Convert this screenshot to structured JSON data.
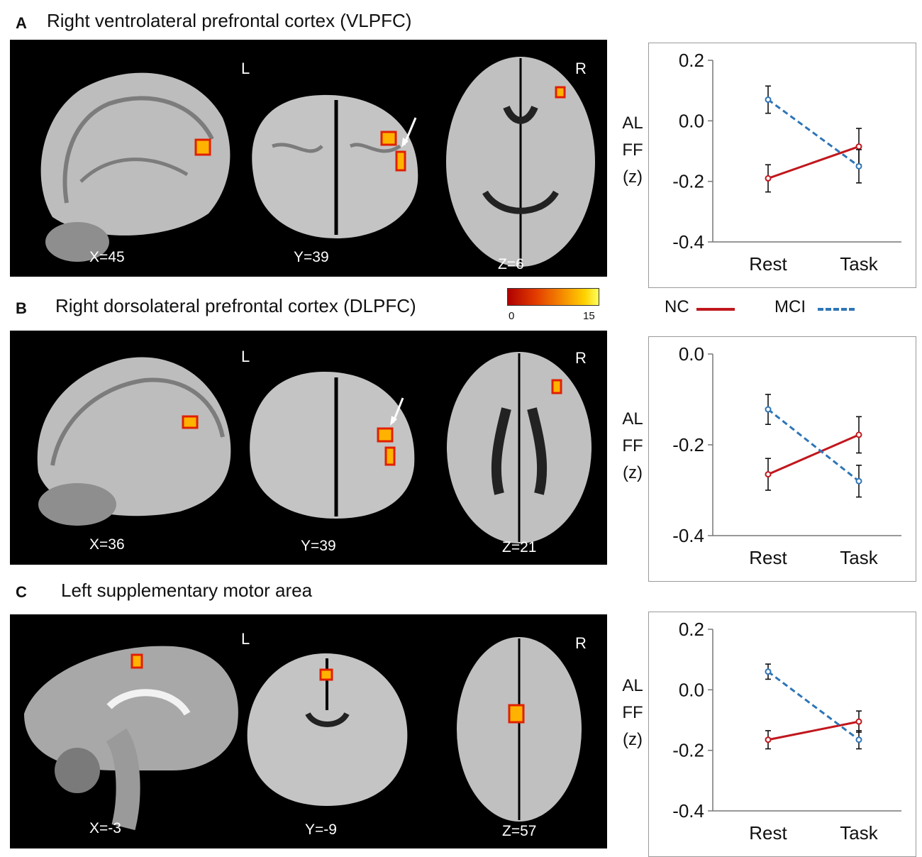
{
  "panels": [
    {
      "letter": "A",
      "title": "Right ventrolateral prefrontal cortex (VLPFC)",
      "coords": [
        "X=45",
        "Y=39",
        "Z=6"
      ],
      "side_labels": [
        "L",
        "R"
      ]
    },
    {
      "letter": "B",
      "title": "Right dorsolateral prefrontal cortex (DLPFC)",
      "coords": [
        "X=36",
        "Y=39",
        "Z=21"
      ],
      "side_labels": [
        "L",
        "R"
      ]
    },
    {
      "letter": "C",
      "title": "Left supplementary motor area",
      "coords": [
        "X=-3",
        "Y=-9",
        "Z=57"
      ],
      "side_labels": [
        "L",
        "R"
      ]
    }
  ],
  "colorbar": {
    "min": "0",
    "max": "15"
  },
  "legend": [
    {
      "name": "NC",
      "color": "#c0171d",
      "style": "solid"
    },
    {
      "name": "MCI",
      "color": "#2e75b6",
      "style": "dashed"
    }
  ],
  "ylabel_lines": [
    "AL",
    "FF",
    "(z)"
  ],
  "chart_data": [
    {
      "type": "line",
      "categories": [
        "Rest",
        "Task"
      ],
      "yticks": [
        "0.2",
        "0.0",
        "-0.2",
        "-0.4"
      ],
      "ylim": [
        -0.4,
        0.2
      ],
      "series": [
        {
          "name": "NC",
          "values": [
            -0.19,
            -0.085
          ],
          "errors": [
            0.045,
            0.06
          ]
        },
        {
          "name": "MCI",
          "values": [
            0.07,
            -0.15
          ],
          "errors": [
            0.045,
            0.055
          ]
        }
      ]
    },
    {
      "type": "line",
      "categories": [
        "Rest",
        "Task"
      ],
      "yticks": [
        "0.0",
        "-0.2",
        "-0.4"
      ],
      "ylim": [
        -0.4,
        0.0
      ],
      "series": [
        {
          "name": "NC",
          "values": [
            -0.265,
            -0.178
          ],
          "errors": [
            0.035,
            0.04
          ]
        },
        {
          "name": "MCI",
          "values": [
            -0.122,
            -0.28
          ],
          "errors": [
            0.033,
            0.035
          ]
        }
      ]
    },
    {
      "type": "line",
      "categories": [
        "Rest",
        "Task"
      ],
      "yticks": [
        "0.2",
        "0.0",
        "-0.2",
        "-0.4"
      ],
      "ylim": [
        -0.4,
        0.2
      ],
      "series": [
        {
          "name": "NC",
          "values": [
            -0.165,
            -0.105
          ],
          "errors": [
            0.03,
            0.035
          ]
        },
        {
          "name": "MCI",
          "values": [
            0.06,
            -0.165
          ],
          "errors": [
            0.025,
            0.03
          ]
        }
      ]
    }
  ]
}
